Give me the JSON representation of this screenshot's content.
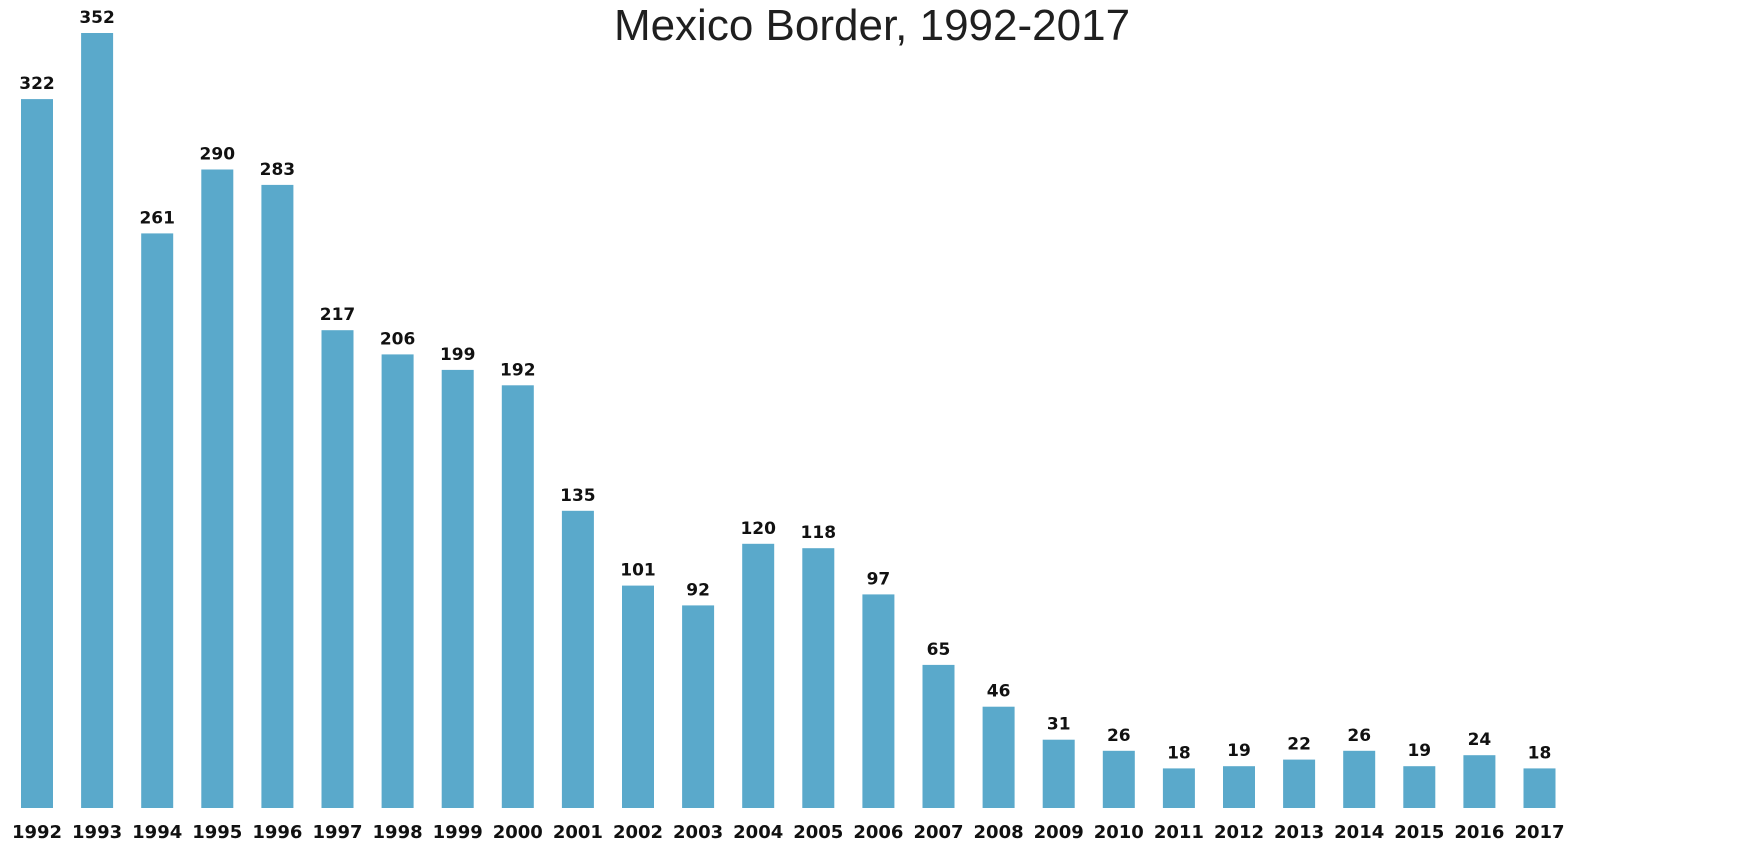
{
  "chart_data": {
    "type": "bar",
    "title": "Mexico Border, 1992-2017",
    "xlabel": "",
    "ylabel": "",
    "categories": [
      "1992",
      "1993",
      "1994",
      "1995",
      "1996",
      "1997",
      "1998",
      "1999",
      "2000",
      "2001",
      "2002",
      "2003",
      "2004",
      "2005",
      "2006",
      "2007",
      "2008",
      "2009",
      "2010",
      "2011",
      "2012",
      "2013",
      "2014",
      "2015",
      "2016",
      "2017"
    ],
    "values": [
      322,
      352,
      261,
      290,
      283,
      217,
      206,
      199,
      192,
      135,
      101,
      92,
      120,
      118,
      97,
      65,
      46,
      31,
      26,
      18,
      19,
      22,
      26,
      19,
      24,
      18
    ],
    "ylim": [
      0,
      352
    ],
    "grid": false,
    "legend": "none",
    "colors": {
      "bar": "#5aa9cb",
      "text": "#111111"
    }
  }
}
